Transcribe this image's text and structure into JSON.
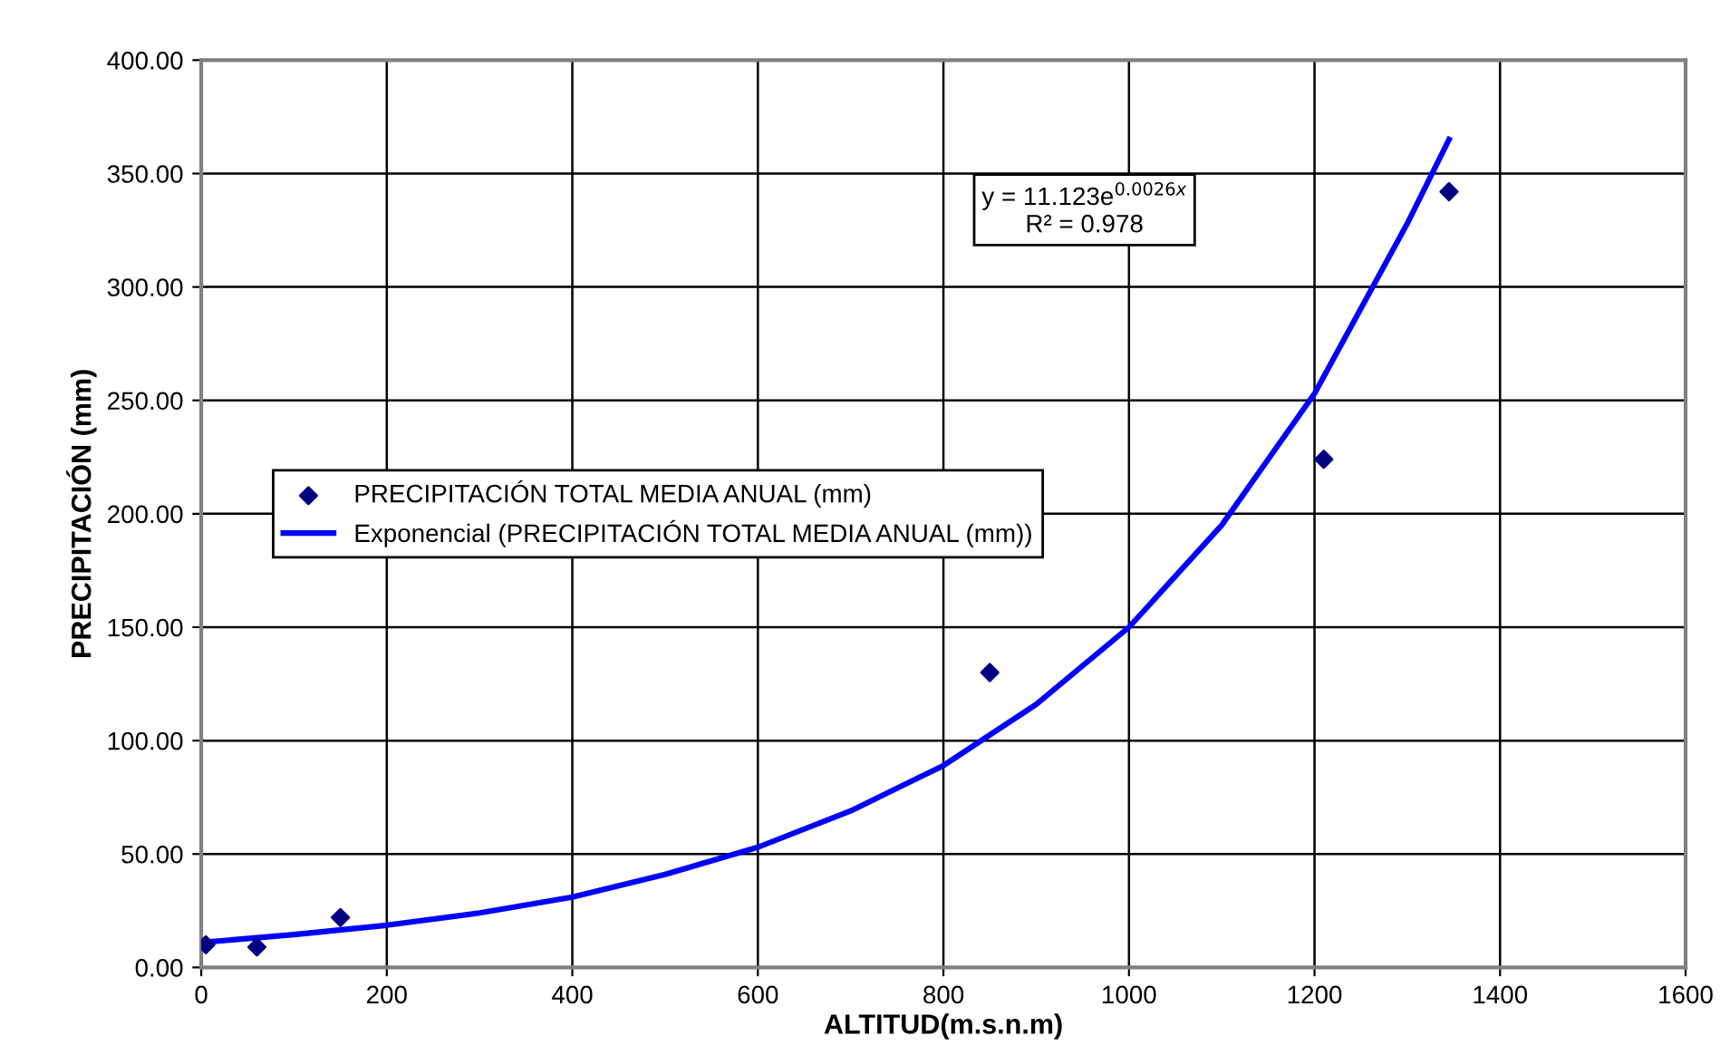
{
  "chart_data": {
    "type": "scatter",
    "xlabel": "ALTITUD(m.s.n.m)",
    "ylabel": "PRECIPITACIÓN (mm)",
    "xlim": [
      0,
      1600
    ],
    "xticks": [
      0,
      200,
      400,
      600,
      800,
      1000,
      1200,
      1400,
      1600
    ],
    "ylim": [
      0,
      400
    ],
    "yticks": [
      {
        "value": 0,
        "label": "0.00"
      },
      {
        "value": 50,
        "label": "50.00"
      },
      {
        "value": 100,
        "label": "100.00"
      },
      {
        "value": 150,
        "label": "150.00"
      },
      {
        "value": 200,
        "label": "200.00"
      },
      {
        "value": 250,
        "label": "250.00"
      },
      {
        "value": 300,
        "label": "300.00"
      },
      {
        "value": 350,
        "label": "350.00"
      },
      {
        "value": 400,
        "label": "400.00"
      }
    ],
    "grid": true,
    "legend": "left",
    "annotations": [
      "y = 11.123e$^{0.0026x}$",
      "R² = 0.978"
    ],
    "series": [
      {
        "name": "PRECIPITACIÓN TOTAL MEDIA ANUAL (mm)",
        "color": "#000080",
        "marker": "diamond",
        "x": [
          5,
          60,
          150,
          850,
          1210,
          1345
        ],
        "values": [
          10,
          9,
          22,
          130,
          224,
          342
        ]
      },
      {
        "name": "Exponencial (PRECIPITACIÓN TOTAL MEDIA ANUAL (mm))",
        "type": "line",
        "color": "#0000ff",
        "marker": "none",
        "line_style": "solid",
        "x": [
          0,
          100,
          200,
          300,
          400,
          500,
          600,
          700,
          800,
          900,
          1000,
          1100,
          1200,
          1300,
          1345
        ],
        "values": [
          11,
          14.5,
          18.6,
          24,
          31,
          41,
          53,
          69,
          89,
          116,
          150,
          195,
          253,
          328,
          365
        ]
      }
    ]
  }
}
